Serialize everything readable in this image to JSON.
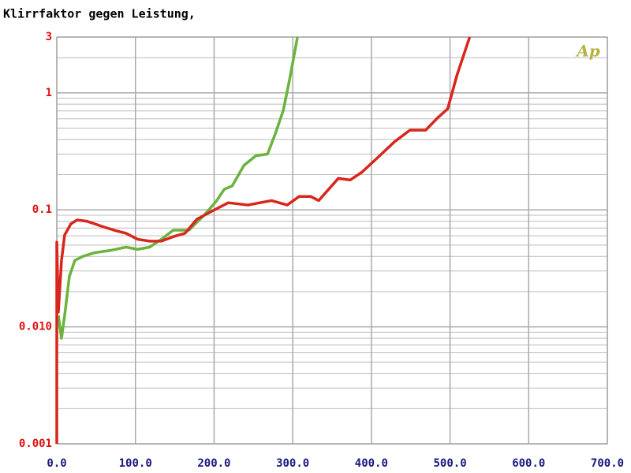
{
  "chart_data": {
    "type": "line",
    "title": "Klirrfaktor gegen Leistung,",
    "logo": "Ap",
    "xlim": [
      0,
      700
    ],
    "xticks": [
      {
        "value": 0,
        "label": "0.0"
      },
      {
        "value": 100,
        "label": "100.0"
      },
      {
        "value": 200,
        "label": "200.0"
      },
      {
        "value": 300,
        "label": "300.0"
      },
      {
        "value": 400,
        "label": "400.0"
      },
      {
        "value": 500,
        "label": "500.0"
      },
      {
        "value": 600,
        "label": "600.0"
      },
      {
        "value": 700,
        "label": "700.0"
      }
    ],
    "ylim": [
      0.001,
      3
    ],
    "yticks": [
      0.001,
      {
        "value": 0.01,
        "label": "0.010"
      },
      0.1,
      1,
      3
    ],
    "yminor_ticks": [
      0.002,
      0.003,
      0.004,
      0.005,
      0.006,
      0.007,
      0.008,
      0.009,
      0.02,
      0.03,
      0.04,
      0.05,
      0.06,
      0.07,
      0.08,
      0.09,
      0.2,
      0.3,
      0.4,
      0.5,
      0.6,
      0.7,
      0.8,
      0.9,
      2
    ],
    "log_y": true,
    "grid": true,
    "series": [
      {
        "color": "#6cb33e",
        "x": [
          2,
          6,
          10,
          16,
          23,
          33,
          48,
          68,
          88,
          103,
          118,
          133,
          148,
          168,
          188,
          203,
          213,
          223,
          238,
          253,
          268,
          278,
          288,
          296,
          306
        ],
        "values": [
          0.0125,
          0.008,
          0.0125,
          0.027,
          0.037,
          0.04,
          0.043,
          0.045,
          0.048,
          0.046,
          0.048,
          0.056,
          0.067,
          0.067,
          0.091,
          0.119,
          0.15,
          0.16,
          0.24,
          0.29,
          0.3,
          0.45,
          0.71,
          1.3,
          3
        ]
      },
      {
        "color": "#d8261c",
        "x": [
          0,
          0,
          2,
          6,
          10,
          18,
          26,
          38,
          48,
          58,
          73,
          88,
          103,
          118,
          133,
          148,
          163,
          178,
          198,
          218,
          243,
          273,
          293,
          308,
          323,
          333,
          358,
          373,
          388,
          408,
          429,
          449,
          469,
          484,
          497,
          509,
          525
        ],
        "values": [
          0.001,
          0.053,
          0.0134,
          0.037,
          0.061,
          0.076,
          0.082,
          0.08,
          0.076,
          0.072,
          0.067,
          0.063,
          0.056,
          0.054,
          0.054,
          0.059,
          0.063,
          0.083,
          0.098,
          0.115,
          0.11,
          0.12,
          0.11,
          0.13,
          0.13,
          0.12,
          0.186,
          0.18,
          0.21,
          0.28,
          0.38,
          0.48,
          0.48,
          0.61,
          0.73,
          1.43,
          3
        ]
      }
    ]
  }
}
